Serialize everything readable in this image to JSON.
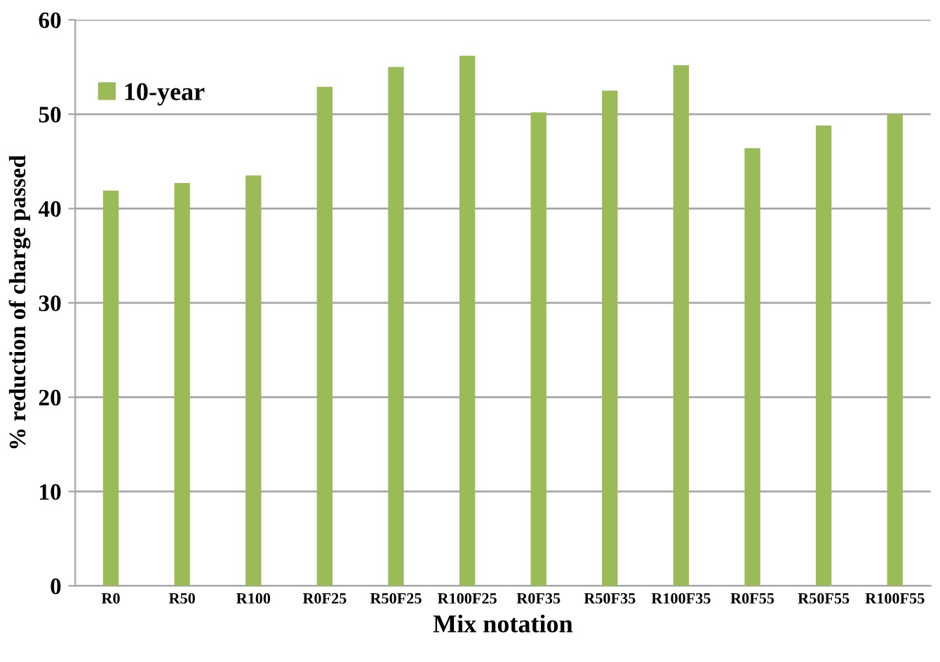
{
  "chart_data": {
    "type": "bar",
    "xlabel": "Mix notation",
    "ylabel": "% reduction of charge passed",
    "categories": [
      "R0",
      "R50",
      "R100",
      "R0F25",
      "R50F25",
      "R100F25",
      "R0F35",
      "R50F35",
      "R100F35",
      "R0F55",
      "R50F55",
      "R100F55"
    ],
    "series": [
      {
        "name": "10-year",
        "color": "#9bbb59",
        "values": [
          41.9,
          42.7,
          43.5,
          52.9,
          55.0,
          56.2,
          50.2,
          52.5,
          55.2,
          46.4,
          48.8,
          50.0
        ]
      }
    ],
    "ylim": [
      0,
      60
    ],
    "yticks": [
      0,
      10,
      20,
      30,
      40,
      50,
      60
    ],
    "grid": "y",
    "legend": "top left"
  }
}
